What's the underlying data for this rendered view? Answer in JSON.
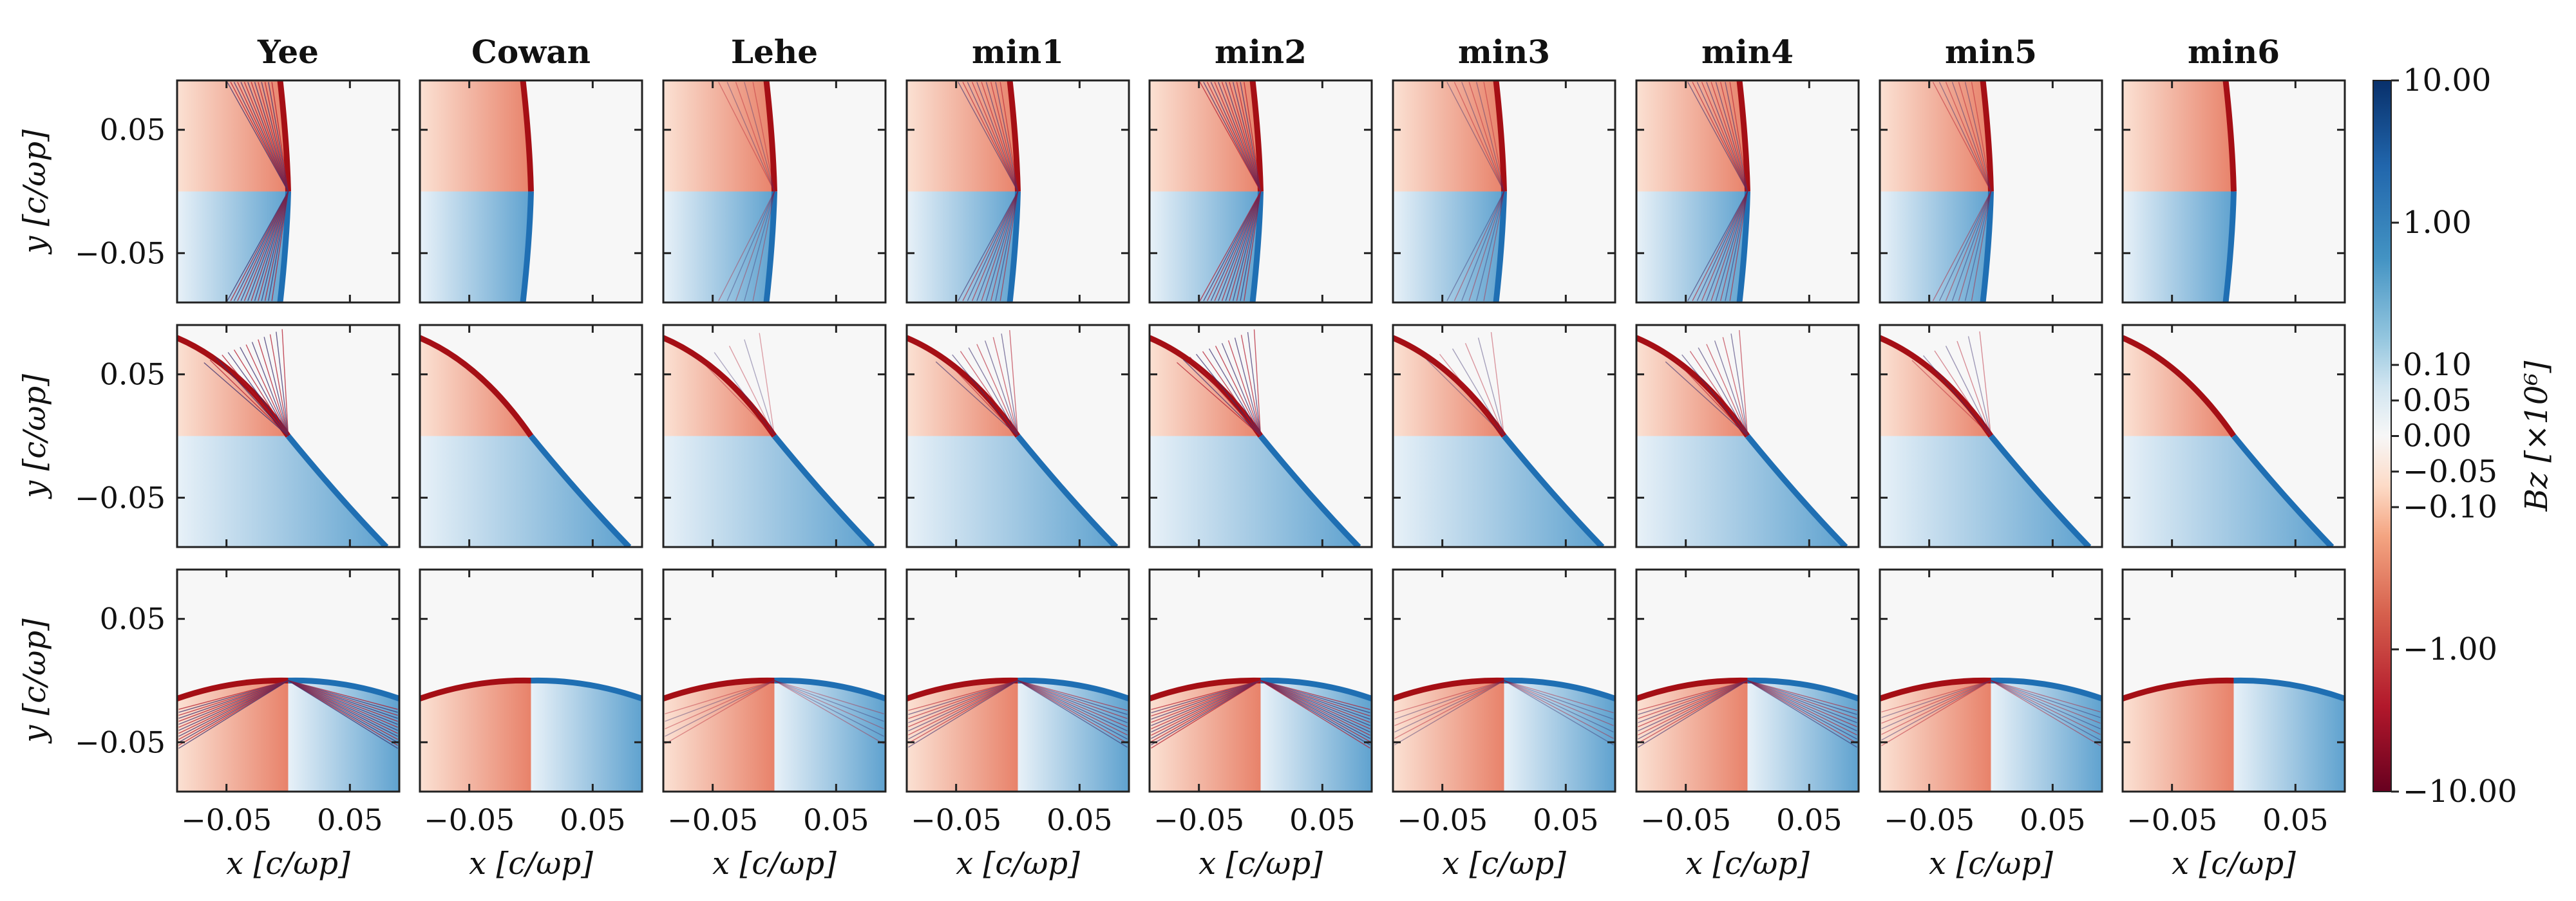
{
  "chart_data": {
    "type": "heatmap",
    "columns": [
      "Yee",
      "Cowan",
      "Lehe",
      "min1",
      "min2",
      "min3",
      "min4",
      "min5",
      "min6"
    ],
    "rows": 3,
    "xlabel": "x [c/ωp]",
    "ylabel": "y [c/ωp]",
    "x_ticks": [
      "−0.05",
      "0.05"
    ],
    "y_ticks": [
      "0.05",
      "−0.05"
    ],
    "xlim": [
      -0.09,
      0.09
    ],
    "ylim": [
      -0.09,
      0.09
    ],
    "colorbar": {
      "label": "Bz [×10⁶]",
      "scale": "symlog",
      "ticks": [
        "10.00",
        "1.00",
        "0.10",
        "0.05",
        "0.00",
        "−0.05",
        "−0.10",
        "−1.00",
        "−10.00"
      ],
      "tick_values": [
        10,
        1,
        0.1,
        0.05,
        0,
        -0.05,
        -0.1,
        -1,
        -10
      ],
      "colormap": "RdBu",
      "colors": {
        "positive": "#08306b",
        "zero": "#f7f7f7",
        "negative": "#67001f"
      }
    },
    "wavefronts": [
      {
        "row": 1,
        "description": "vertical",
        "angle_deg": 0
      },
      {
        "row": 2,
        "description": "diagonal",
        "angle_deg": 45
      },
      {
        "row": 3,
        "description": "horizontal",
        "angle_deg": 90
      }
    ],
    "dispersion_artifacts": {
      "Yee": 1.0,
      "Cowan": 0.0,
      "Lehe": 0.1,
      "min1": 0.6,
      "min2": 0.9,
      "min3": 0.2,
      "min4": 0.6,
      "min5": 0.3,
      "min6": 0.0
    }
  }
}
